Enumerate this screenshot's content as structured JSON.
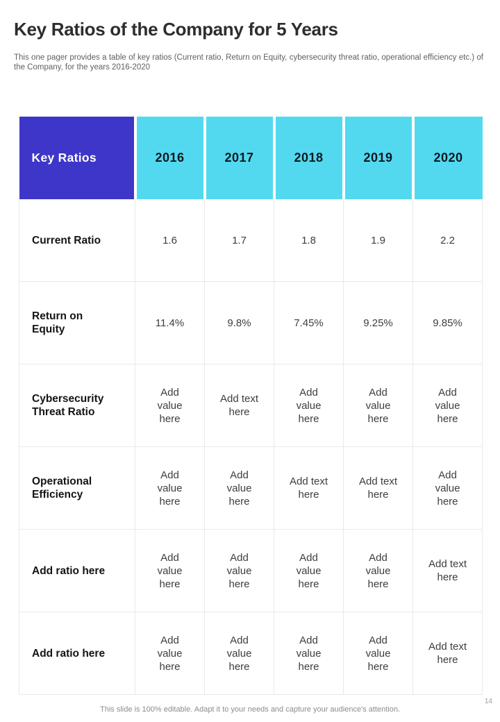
{
  "page": {
    "title": "Key Ratios of the Company for 5 Years",
    "subtitle": "This one pager provides a table of key ratios (Current ratio, Return on Equity, cybersecurity threat ratio, operational efficiency etc.) of the Company, for the years 2016-2020",
    "footer_note": "This slide is 100% editable. Adapt it to your needs and capture your audience's attention.",
    "page_number": "14"
  },
  "colors": {
    "corner_header_bg": "#3e36c8",
    "corner_header_text": "#ffffff",
    "year_header_bg": "#52d9f0",
    "year_header_text": "#10181f",
    "body_border": "#e9e9e9",
    "value_text": "#3d3d3d",
    "label_text": "#141414"
  },
  "table": {
    "corner_label": "Key Ratios",
    "year_headers": [
      "2016",
      "2017",
      "2018",
      "2019",
      "2020"
    ],
    "rows": [
      {
        "label": "Current Ratio",
        "values": [
          "1.6",
          "1.7",
          "1.8",
          "1.9",
          "2.2"
        ]
      },
      {
        "label": "Return on Equity",
        "values": [
          "11.4%",
          "9.8%",
          "7.45%",
          "9.25%",
          "9.85%"
        ]
      },
      {
        "label": "Cybersecurity Threat Ratio",
        "values": [
          "Add value here",
          "Add text here",
          "Add value here",
          "Add value here",
          "Add value here"
        ]
      },
      {
        "label": "Operational Efficiency",
        "values": [
          "Add value here",
          "Add value here",
          "Add text here",
          "Add text here",
          "Add value here"
        ]
      },
      {
        "label": "Add ratio here",
        "values": [
          "Add value here",
          "Add value here",
          "Add value here",
          "Add value here",
          "Add text here"
        ]
      },
      {
        "label": "Add ratio here",
        "values": [
          "Add value here",
          "Add value here",
          "Add value here",
          "Add value here",
          "Add text here"
        ]
      }
    ]
  }
}
